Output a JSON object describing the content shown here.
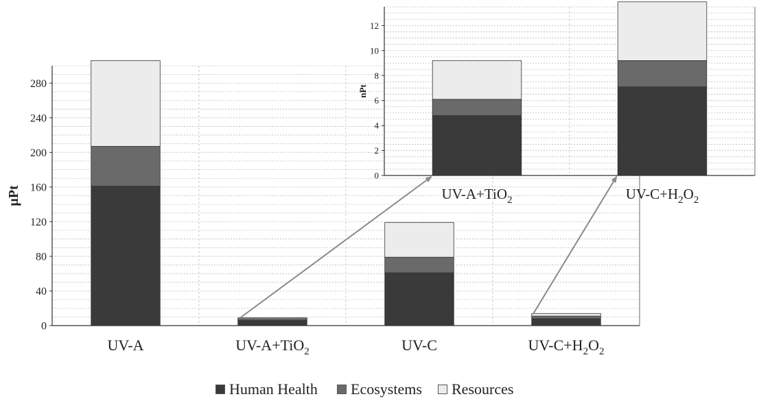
{
  "chart_data": [
    {
      "type": "bar",
      "stacked": true,
      "ylabel": "μPt",
      "ylim": [
        0,
        300
      ],
      "yticks": [
        0,
        40,
        80,
        120,
        160,
        200,
        240,
        280
      ],
      "categories": [
        "UV-A",
        "UV-A+TiO2",
        "UV-C",
        "UV-C+H2O2"
      ],
      "category_labels": [
        {
          "main": "UV-A",
          "sub": ""
        },
        {
          "main": "UV-A+TiO",
          "sub": "2"
        },
        {
          "main": "UV-C",
          "sub": ""
        },
        {
          "main": "UV-C+H",
          "sub": "2",
          "main2": "O",
          "sub2": "2"
        }
      ],
      "series": [
        {
          "name": "Human Health",
          "values": [
            161,
            6,
            61,
            8
          ]
        },
        {
          "name": "Ecosystems",
          "values": [
            46,
            2,
            18,
            3
          ]
        },
        {
          "name": "Resources",
          "values": [
            99,
            1,
            40,
            3
          ]
        }
      ],
      "grid": true
    },
    {
      "type": "bar",
      "stacked": true,
      "ylabel": "nPt",
      "ylim": [
        0,
        13.5
      ],
      "yticks": [
        0,
        2,
        4,
        6,
        8,
        10,
        12
      ],
      "categories": [
        "UV-A+TiO2",
        "UV-C+H2O2"
      ],
      "category_labels": [
        {
          "main": "UV-A+TiO",
          "sub": "2"
        },
        {
          "main": "UV-C+H",
          "sub": "2",
          "main2": "O",
          "sub2": "2"
        }
      ],
      "series": [
        {
          "name": "Human Health",
          "values": [
            4.8,
            7.1
          ]
        },
        {
          "name": "Ecosystems",
          "values": [
            1.3,
            2.1
          ]
        },
        {
          "name": "Resources",
          "values": [
            3.1,
            4.7
          ]
        }
      ],
      "grid": true
    }
  ],
  "legend": {
    "items": [
      {
        "label": "Human Health",
        "color": "#3a3a3a"
      },
      {
        "label": "Ecosystems",
        "color": "#6a6a6a"
      },
      {
        "label": "Resources",
        "color": "#ececec"
      }
    ]
  },
  "colors": {
    "human_health": "#3a3a3a",
    "ecosystems": "#6a6a6a",
    "resources": "#ececec",
    "arrow": "#8a8a8a",
    "grid": "#bbbbbb"
  }
}
